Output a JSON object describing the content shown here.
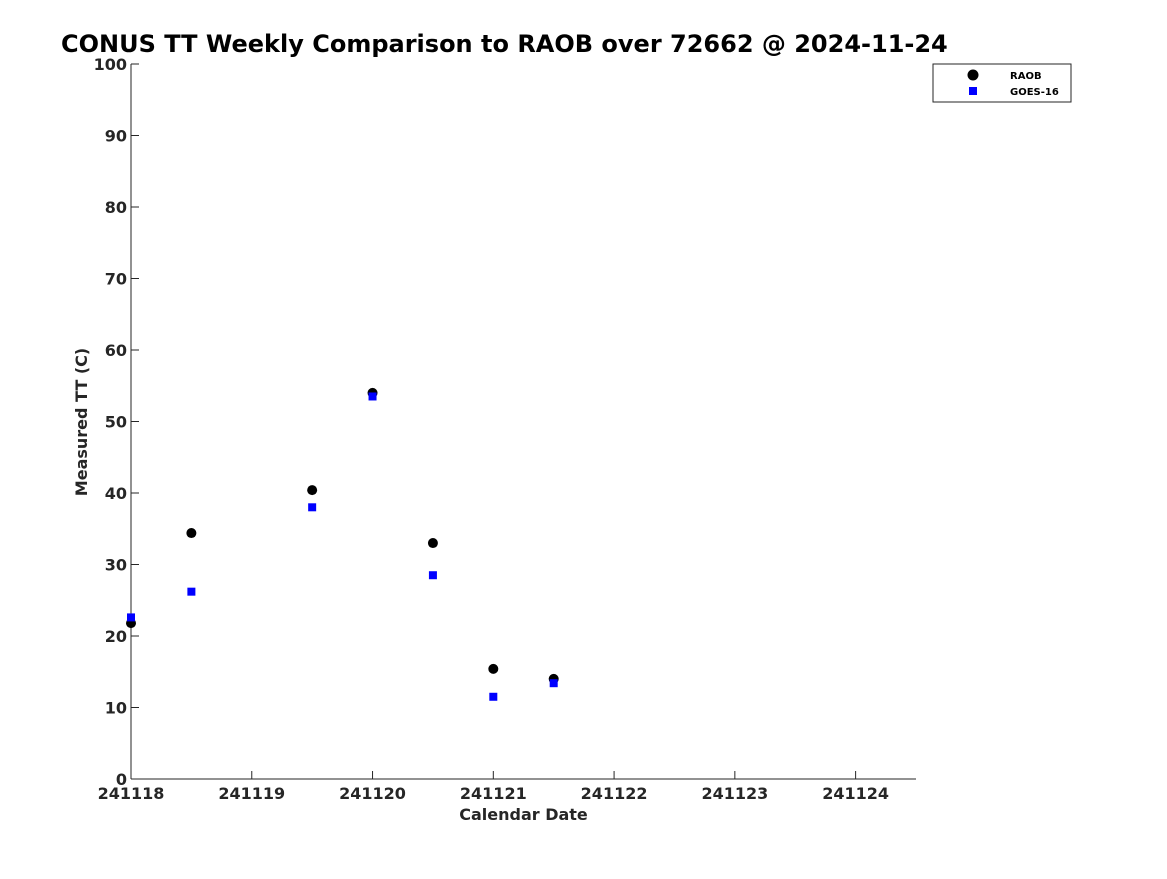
{
  "chart_data": {
    "type": "scatter",
    "title": "CONUS TT Weekly Comparison to RAOB over 72662 @ 2024-11-24",
    "xlabel": "Calendar Date",
    "ylabel": "Measured TT (C)",
    "xlim": [
      241118,
      241124.5
    ],
    "ylim": [
      0,
      100
    ],
    "x_ticks": [
      241118,
      241119,
      241120,
      241121,
      241122,
      241123,
      241124
    ],
    "x_tick_labels": [
      "241118",
      "241119",
      "241120",
      "241121",
      "241122",
      "241123",
      "241124"
    ],
    "y_ticks": [
      0,
      10,
      20,
      30,
      40,
      50,
      60,
      70,
      80,
      90,
      100
    ],
    "y_tick_labels": [
      "0",
      "10",
      "20",
      "30",
      "40",
      "50",
      "60",
      "70",
      "80",
      "90",
      "100"
    ],
    "grid": false,
    "legend_position": "top-right",
    "series": [
      {
        "name": "RAOB",
        "marker": "circle",
        "color": "#000000",
        "x": [
          241118,
          241118.5,
          241119.5,
          241120,
          241120.5,
          241121,
          241121.5
        ],
        "y": [
          21.8,
          34.4,
          40.4,
          54.0,
          33.0,
          15.4,
          14.0
        ]
      },
      {
        "name": "GOES-16",
        "marker": "square",
        "color": "#0000ff",
        "x": [
          241118,
          241118.5,
          241119.5,
          241120,
          241120.5,
          241121,
          241121.5
        ],
        "y": [
          22.6,
          26.2,
          38.0,
          53.5,
          28.5,
          11.5,
          13.4
        ]
      }
    ]
  }
}
